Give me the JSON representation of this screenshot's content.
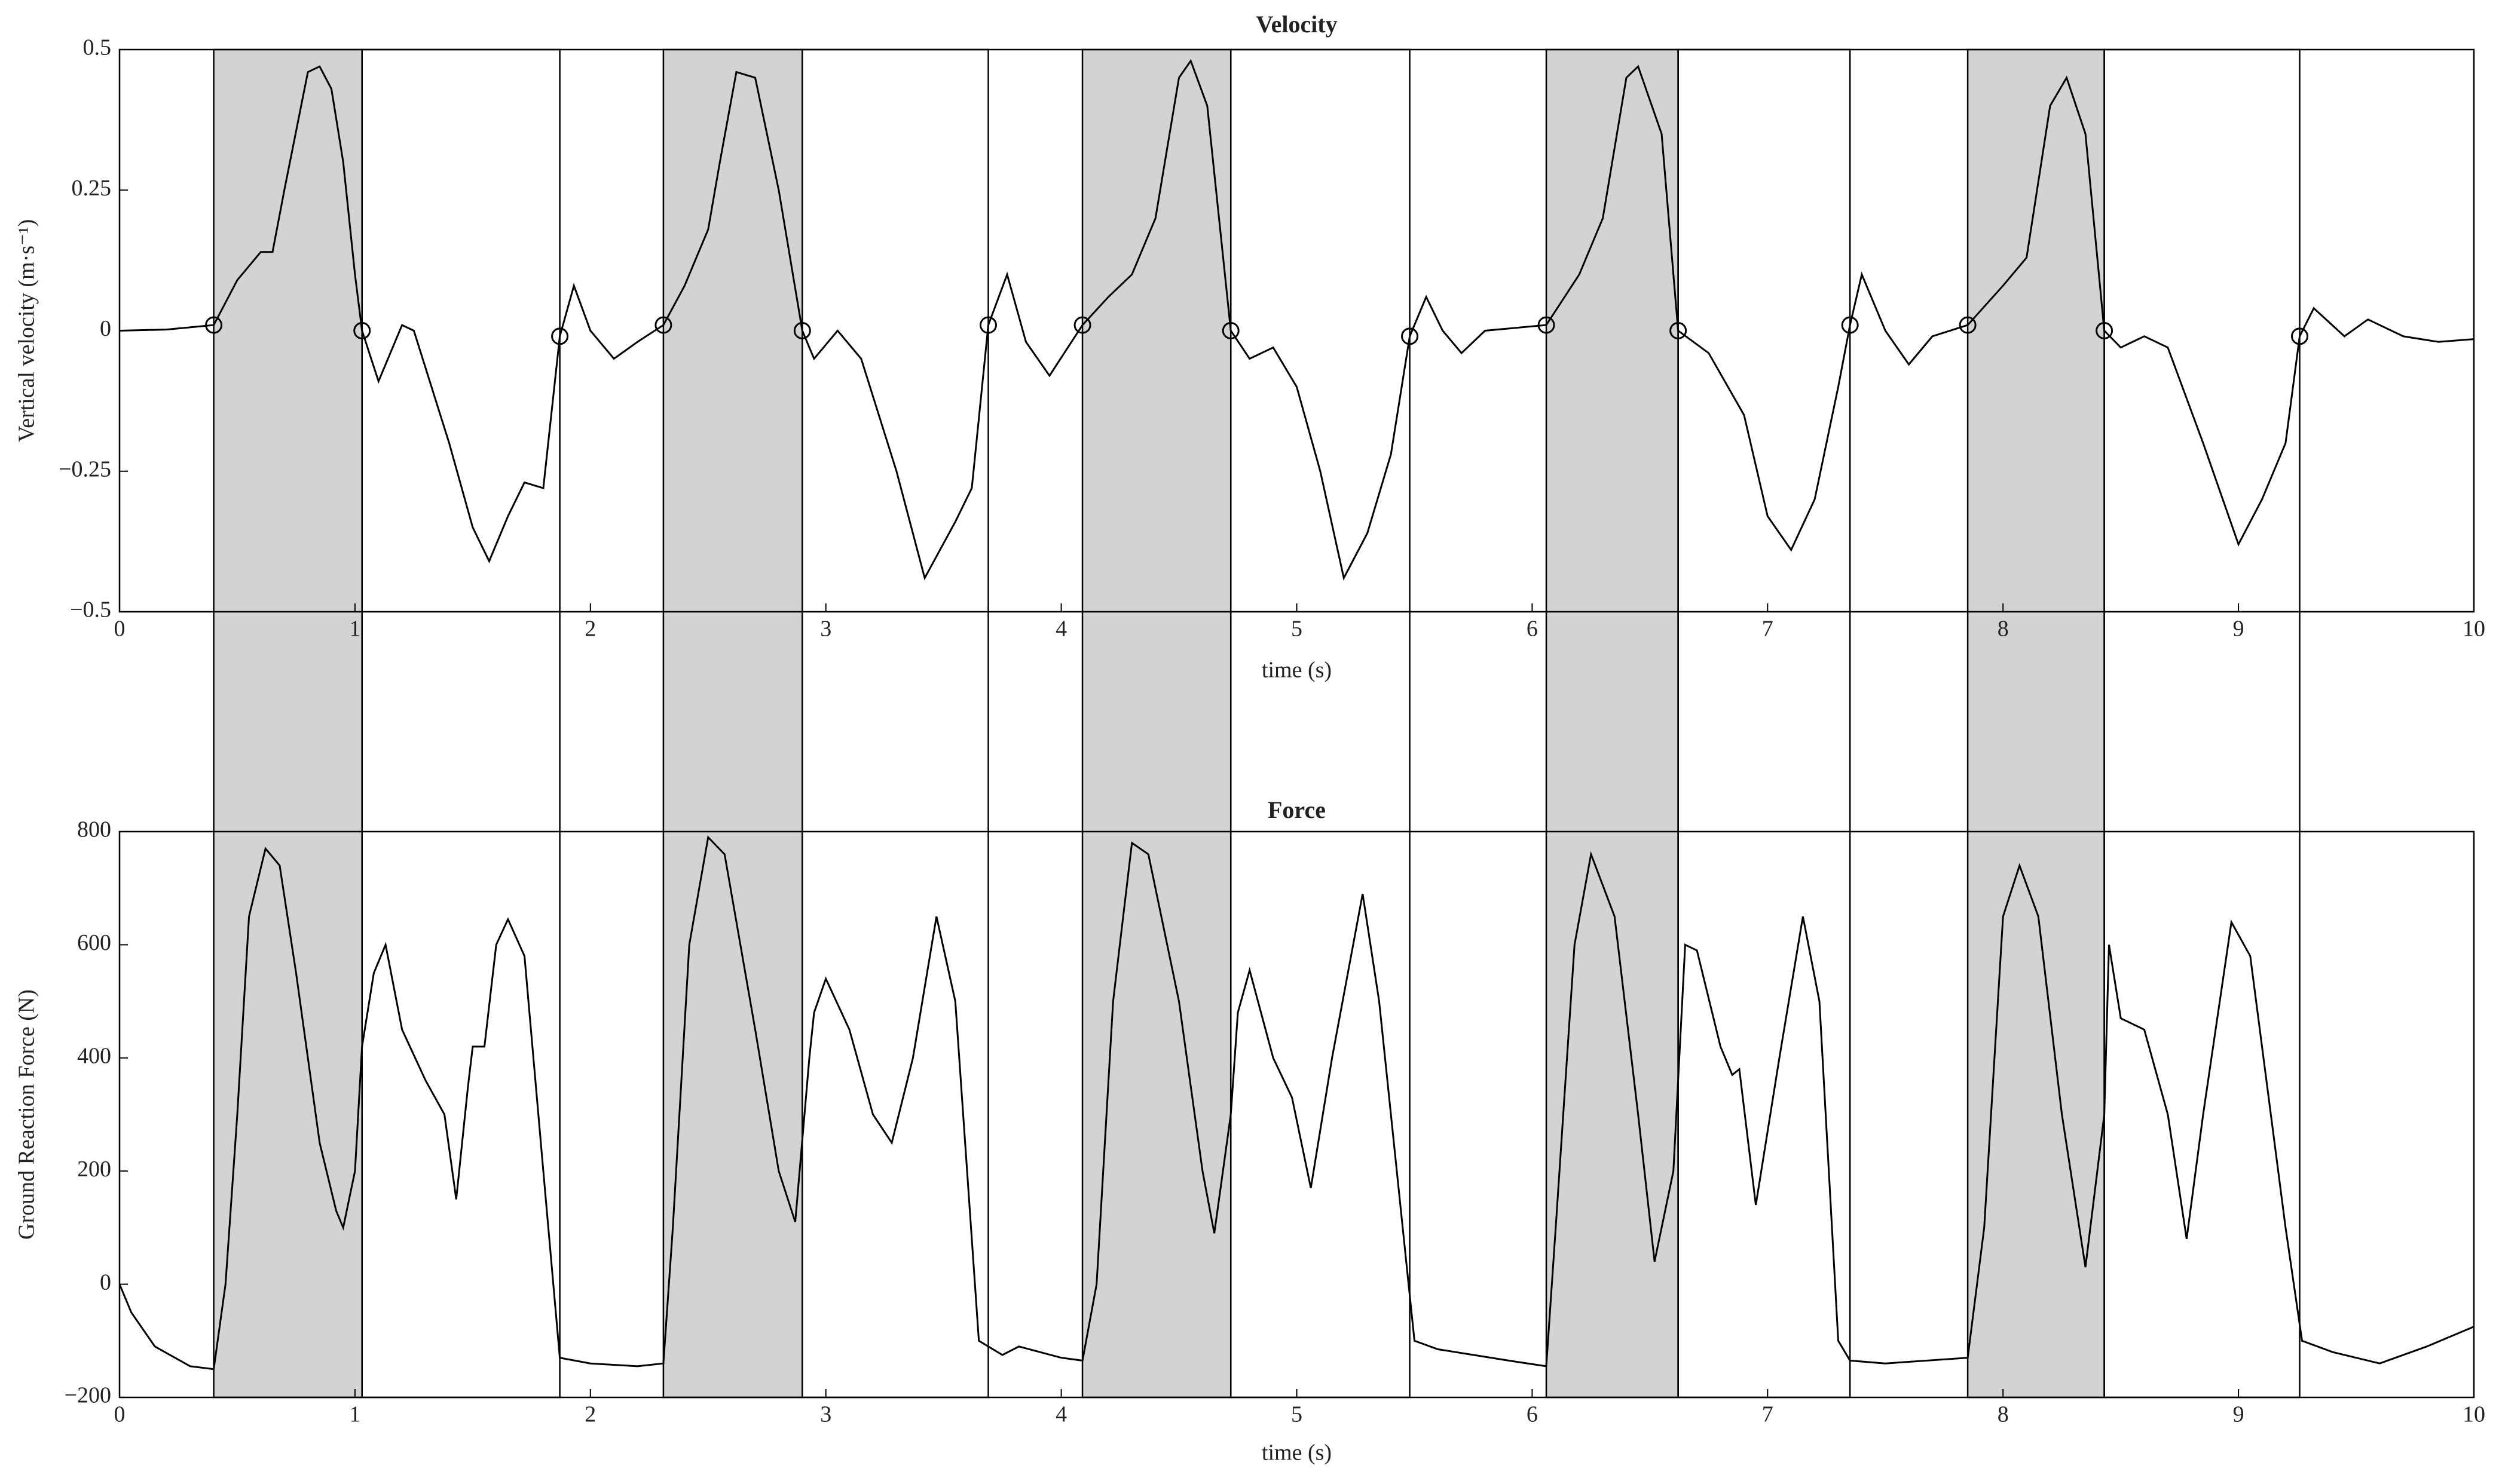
{
  "chart_data": [
    {
      "type": "line",
      "title": "Velocity",
      "xlabel": "time (s)",
      "ylabel": "Vertical velocity (m·s⁻¹)",
      "color": "#000000",
      "x": [
        0,
        0.2,
        0.4,
        0.5,
        0.6,
        0.65,
        0.7,
        0.8,
        0.85,
        0.9,
        0.95,
        1.0,
        1.03,
        1.1,
        1.2,
        1.25,
        1.4,
        1.5,
        1.57,
        1.65,
        1.72,
        1.8,
        1.87,
        1.93,
        2.0,
        2.1,
        2.2,
        2.31,
        2.4,
        2.5,
        2.55,
        2.62,
        2.7,
        2.8,
        2.9,
        2.95,
        3.05,
        3.15,
        3.3,
        3.42,
        3.55,
        3.62,
        3.69,
        3.77,
        3.85,
        3.95,
        4.09,
        4.2,
        4.3,
        4.4,
        4.5,
        4.55,
        4.62,
        4.72,
        4.8,
        4.9,
        5.0,
        5.1,
        5.2,
        5.3,
        5.4,
        5.48,
        5.55,
        5.62,
        5.7,
        5.8,
        6.06,
        6.2,
        6.3,
        6.4,
        6.45,
        6.55,
        6.62,
        6.75,
        6.9,
        7.0,
        7.1,
        7.2,
        7.3,
        7.35,
        7.4,
        7.5,
        7.6,
        7.7,
        7.85,
        8.0,
        8.1,
        8.2,
        8.27,
        8.35,
        8.43,
        8.5,
        8.6,
        8.7,
        8.85,
        9.0,
        9.1,
        9.2,
        9.26,
        9.32,
        9.45,
        9.55,
        9.7,
        9.85,
        10
      ],
      "values": [
        0,
        0.002,
        0.01,
        0.09,
        0.14,
        0.14,
        0.25,
        0.46,
        0.47,
        0.43,
        0.3,
        0.1,
        0,
        -0.09,
        0.01,
        0,
        -0.2,
        -0.35,
        -0.41,
        -0.33,
        -0.27,
        -0.28,
        -0.01,
        0.08,
        0,
        -0.05,
        -0.02,
        0.01,
        0.08,
        0.18,
        0.3,
        0.46,
        0.45,
        0.25,
        0,
        -0.05,
        0,
        -0.05,
        -0.25,
        -0.44,
        -0.34,
        -0.28,
        0.01,
        0.1,
        -0.02,
        -0.08,
        0.01,
        0.06,
        0.1,
        0.2,
        0.45,
        0.48,
        0.4,
        0,
        -0.05,
        -0.03,
        -0.1,
        -0.25,
        -0.44,
        -0.36,
        -0.22,
        -0.01,
        0.06,
        0,
        -0.04,
        0,
        0.01,
        0.1,
        0.2,
        0.45,
        0.47,
        0.35,
        0,
        -0.04,
        -0.15,
        -0.33,
        -0.39,
        -0.3,
        -0.1,
        0.01,
        0.1,
        0,
        -0.06,
        -0.01,
        0.01,
        0.08,
        0.13,
        0.4,
        0.45,
        0.35,
        0,
        -0.03,
        -0.01,
        -0.03,
        -0.2,
        -0.38,
        -0.3,
        -0.2,
        -0.01,
        0.04,
        -0.01,
        0.02,
        -0.01,
        -0.02,
        -0.015
      ],
      "markers": {
        "x": [
          0.4,
          1.03,
          1.87,
          2.31,
          2.9,
          3.69,
          4.09,
          4.72,
          5.48,
          6.06,
          6.62,
          7.35,
          7.85,
          8.43,
          9.26
        ],
        "values": [
          0.01,
          0,
          -0.01,
          0.01,
          0,
          0.01,
          0.01,
          0,
          -0.01,
          0.01,
          0,
          0.01,
          0.01,
          0,
          -0.01
        ]
      },
      "xlim": [
        0,
        10
      ],
      "ylim": [
        -0.5,
        0.5
      ],
      "xticks": [
        0,
        1,
        2,
        3,
        4,
        5,
        6,
        7,
        8,
        9,
        10
      ],
      "yticks": [
        {
          "value": -0.5,
          "label": "−0.5"
        },
        {
          "value": -0.25,
          "label": "−0.25"
        },
        0,
        0.25,
        0.5
      ]
    },
    {
      "type": "line",
      "title": "Force",
      "xlabel": "time (s)",
      "ylabel": "Ground Reaction Force (N)",
      "color": "#000000",
      "x": [
        0,
        0.05,
        0.15,
        0.3,
        0.4,
        0.45,
        0.5,
        0.55,
        0.62,
        0.68,
        0.75,
        0.85,
        0.92,
        0.95,
        1.0,
        1.03,
        1.08,
        1.13,
        1.2,
        1.3,
        1.38,
        1.43,
        1.48,
        1.5,
        1.55,
        1.6,
        1.65,
        1.72,
        1.8,
        1.87,
        2.0,
        2.2,
        2.31,
        2.35,
        2.42,
        2.5,
        2.57,
        2.7,
        2.8,
        2.87,
        2.93,
        2.95,
        3.0,
        3.1,
        3.2,
        3.28,
        3.37,
        3.47,
        3.55,
        3.65,
        3.75,
        3.82,
        4.0,
        4.09,
        4.15,
        4.22,
        4.3,
        4.37,
        4.5,
        4.6,
        4.65,
        4.72,
        4.75,
        4.8,
        4.9,
        4.98,
        5.06,
        5.15,
        5.28,
        5.35,
        5.5,
        5.6,
        5.9,
        6.06,
        6.1,
        6.18,
        6.25,
        6.35,
        6.45,
        6.52,
        6.6,
        6.65,
        6.7,
        6.8,
        6.85,
        6.88,
        6.95,
        7.05,
        7.15,
        7.22,
        7.3,
        7.35,
        7.5,
        7.85,
        7.92,
        8.0,
        8.07,
        8.15,
        8.25,
        8.35,
        8.43,
        8.45,
        8.5,
        8.6,
        8.7,
        8.78,
        8.85,
        8.97,
        9.05,
        9.2,
        9.27,
        9.4,
        9.6,
        9.8,
        10
      ],
      "values": [
        0,
        -50,
        -110,
        -145,
        -150,
        0,
        300,
        650,
        770,
        740,
        550,
        250,
        130,
        100,
        200,
        420,
        550,
        600,
        450,
        360,
        300,
        150,
        350,
        420,
        420,
        600,
        645,
        580,
        200,
        -130,
        -140,
        -145,
        -140,
        100,
        600,
        790,
        760,
        450,
        200,
        110,
        400,
        480,
        540,
        450,
        300,
        250,
        400,
        650,
        500,
        -100,
        -125,
        -110,
        -130,
        -135,
        0,
        500,
        780,
        760,
        500,
        200,
        90,
        300,
        480,
        555,
        400,
        330,
        170,
        400,
        690,
        500,
        -100,
        -115,
        -135,
        -145,
        100,
        600,
        760,
        650,
        300,
        40,
        200,
        600,
        590,
        420,
        370,
        380,
        140,
        400,
        650,
        500,
        -100,
        -135,
        -140,
        -130,
        100,
        650,
        740,
        650,
        300,
        30,
        300,
        600,
        470,
        450,
        300,
        80,
        300,
        640,
        580,
        100,
        -100,
        -120,
        -140,
        -110,
        -75
      ],
      "xlim": [
        0,
        10
      ],
      "ylim": [
        -200,
        800
      ],
      "xticks": [
        0,
        1,
        2,
        3,
        4,
        5,
        6,
        7,
        8,
        9,
        10
      ],
      "yticks": [
        {
          "value": -200,
          "label": "−200"
        },
        0,
        200,
        400,
        600,
        800
      ]
    }
  ],
  "phases": {
    "shaded": [
      [
        0.4,
        1.03
      ],
      [
        2.31,
        2.9
      ],
      [
        4.09,
        4.72
      ],
      [
        6.06,
        6.62
      ],
      [
        7.85,
        8.43
      ]
    ],
    "open": [
      [
        1.03,
        1.87
      ],
      [
        2.9,
        3.69
      ],
      [
        4.72,
        5.48
      ],
      [
        6.62,
        7.35
      ],
      [
        8.43,
        9.26
      ]
    ]
  }
}
